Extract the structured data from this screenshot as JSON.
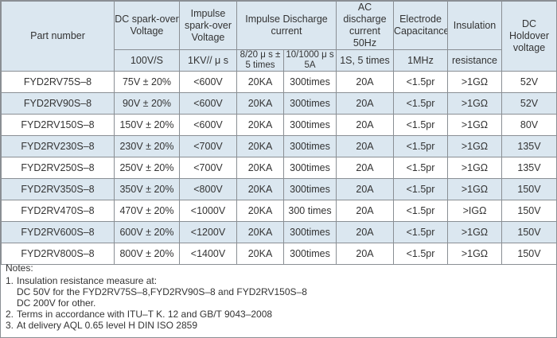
{
  "table": {
    "headers": {
      "part_number": "Part number",
      "dc_spark": "DC spark-over Voltage",
      "impulse_spark": "Impulse spark-over Voltage",
      "impulse_discharge": "Impulse Discharge current",
      "ac_discharge": "AC discharge current 50Hz",
      "electrode_cap": "Electrode Capacitance",
      "insulation": "Insulation",
      "insulation2": "resistance",
      "dc_holdover": "DC Holdover voltage"
    },
    "subheaders": {
      "dc_spark": "100V/S",
      "impulse_spark": "1KV// μ s",
      "impulse_8_20": "8/20 μ s ± 5 times",
      "impulse_10_1000": "10/1000 μ s 5A",
      "ac_discharge": "1S, 5 times",
      "electrode_cap": "1MHz"
    },
    "rows": [
      [
        "FYD2RV75S–8",
        "75V ± 20%",
        "<600V",
        "20KA",
        "300times",
        "20A",
        "<1.5pr",
        ">1GΩ",
        "52V"
      ],
      [
        "FYD2RV90S–8",
        "90V ± 20%",
        "<600V",
        "20KA",
        "300times",
        "20A",
        "<1.5pr",
        ">1GΩ",
        "52V"
      ],
      [
        "FYD2RV150S–8",
        "150V ± 20%",
        "<600V",
        "20KA",
        "300times",
        "20A",
        "<1.5pr",
        ">1GΩ",
        "80V"
      ],
      [
        "FYD2RV230S–8",
        "230V ± 20%",
        "<700V",
        "20KA",
        "300times",
        "20A",
        "<1.5pr",
        ">1GΩ",
        "135V"
      ],
      [
        "FYD2RV250S–8",
        "250V ± 20%",
        "<700V",
        "20KA",
        "300times",
        "20A",
        "<1.5pr",
        ">1GΩ",
        "135V"
      ],
      [
        "FYD2RV350S–8",
        "350V ± 20%",
        "<800V",
        "20KA",
        "300times",
        "20A",
        "<1.5pr",
        ">1GΩ",
        "150V"
      ],
      [
        "FYD2RV470S–8",
        "470V ± 20%",
        "<1000V",
        "20KA",
        "300 times",
        "20A",
        "<1.5pr",
        ">IGΩ",
        "150V"
      ],
      [
        "FYD2RV600S–8",
        "600V ± 20%",
        "<1200V",
        "20KA",
        "300times",
        "20A",
        "<1.5pr",
        ">1GΩ",
        "150V"
      ],
      [
        "FYD2RV800S–8",
        "800V ± 20%",
        "<1400V",
        "20KA",
        "300times",
        "20A",
        "<1.5pr",
        ">1GΩ",
        "150V"
      ]
    ]
  },
  "notes": {
    "title": "Notes:",
    "items": [
      {
        "num": "1.",
        "text": "Insulation resistance measure at:"
      },
      {
        "num": "",
        "text": "DC 50V for the FYD2RV75S–8,FYD2RV90S–8 and FYD2RV150S–8"
      },
      {
        "num": "",
        "text": "DC 200V for other."
      },
      {
        "num": "2.",
        "text": "Terms in accordance with ITU–T K. 12 and GB/T 9043–2008"
      },
      {
        "num": "3.",
        "text": "At delivery  AQL 0.65 level H DIN ISO 2859"
      }
    ]
  }
}
